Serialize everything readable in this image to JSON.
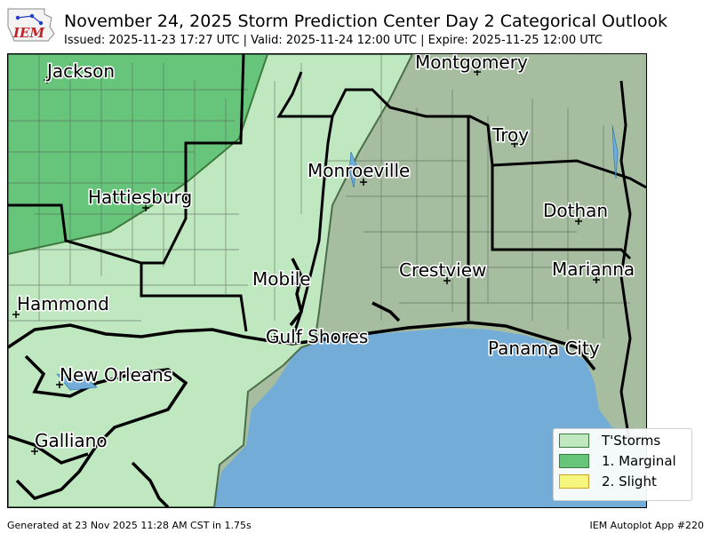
{
  "header": {
    "logo_text": "IEM",
    "title": "November 24, 2025 Storm Prediction Center Day 2 Categorical Outlook",
    "subtitle": "Issued: 2025-11-23 17:27 UTC | Valid: 2025-11-24 12:00 UTC | Expire: 2025-11-25 12:00 UTC"
  },
  "map": {
    "colors": {
      "tstorm": "#c0e8c0",
      "marginal": "#66c57a",
      "slight": "#f6f67f",
      "water": "#74acd8",
      "terrain": "#a6bda0"
    },
    "cities": [
      {
        "name": "Jackson",
        "marker": true
      },
      {
        "name": "Montgomery",
        "marker": true
      },
      {
        "name": "Troy",
        "marker": true
      },
      {
        "name": "Monroeville",
        "marker": true
      },
      {
        "name": "Hattiesburg",
        "marker": true
      },
      {
        "name": "Dothan",
        "marker": true
      },
      {
        "name": "Mobile",
        "marker": true
      },
      {
        "name": "Crestview",
        "marker": true
      },
      {
        "name": "Marianna",
        "marker": true
      },
      {
        "name": "Hammond",
        "marker": true
      },
      {
        "name": "Gulf Shores",
        "marker": true
      },
      {
        "name": "Panama City",
        "marker": true
      },
      {
        "name": "New Orleans",
        "marker": true
      },
      {
        "name": "Galliano",
        "marker": true
      }
    ]
  },
  "legend": {
    "items": [
      {
        "label": "T'Storms",
        "color": "#c0e8c0",
        "border": "#3d7a3d"
      },
      {
        "label": "1. Marginal",
        "color": "#66c57a",
        "border": "#3d7a3d"
      },
      {
        "label": "2. Slight",
        "color": "#f6f67f",
        "border": "#c9a227"
      }
    ]
  },
  "footer": {
    "generated": "Generated at 23 Nov 2025 11:28 AM CST in 1.75s",
    "app": "IEM Autoplot App #220"
  }
}
